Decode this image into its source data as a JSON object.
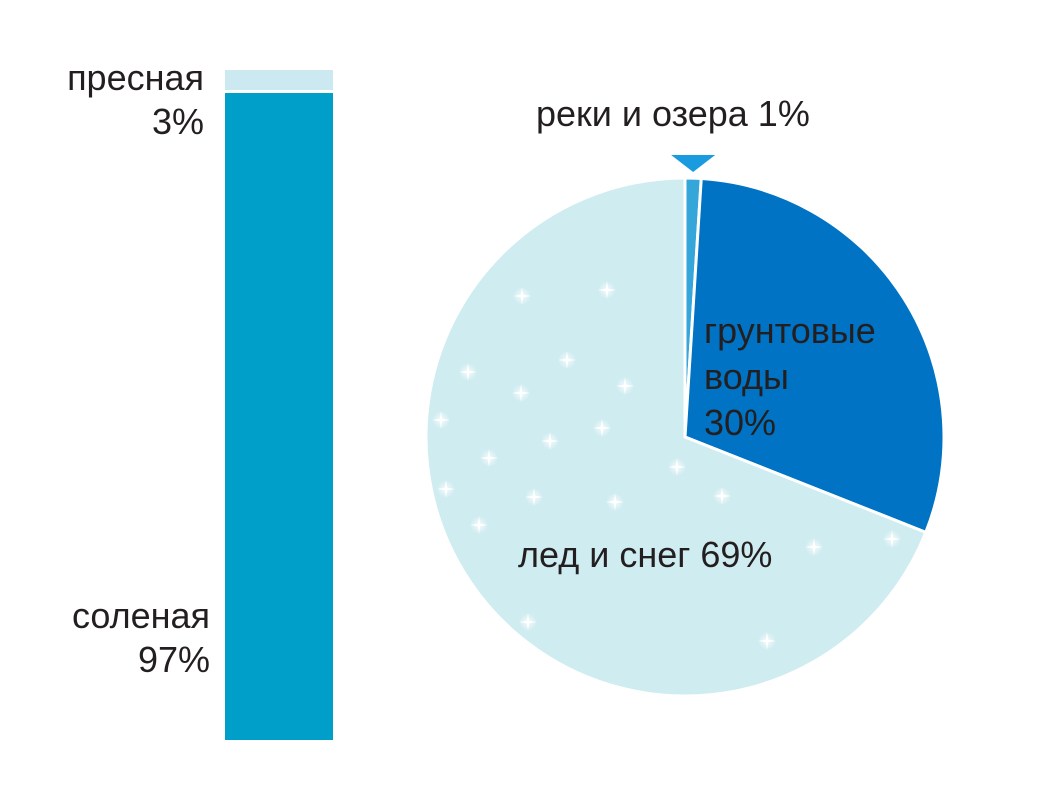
{
  "chart_data": [
    {
      "type": "bar",
      "orientation": "stacked",
      "categories": [
        "пресная",
        "соленая"
      ],
      "values": [
        3,
        97
      ],
      "colors": [
        "#cce9f1",
        "#009fca"
      ],
      "labels": [
        {
          "name": "пресная",
          "value": "3%"
        },
        {
          "name": "соленая",
          "value": "97%"
        }
      ]
    },
    {
      "type": "pie",
      "categories": [
        "реки и озера",
        "грунтовые воды",
        "лед и снег"
      ],
      "values": [
        1,
        30,
        69
      ],
      "colors": [
        "#35a6d9",
        "#0073c4",
        "#cfecf1"
      ],
      "labels": [
        {
          "line1": "реки и озера 1%"
        },
        {
          "line1": "грунтовые",
          "line2": "воды",
          "line3": "30%"
        },
        {
          "line1": "лед и снег 69%"
        }
      ],
      "marker_color": "#1a9be0",
      "sparkle_color": "#ffffff"
    }
  ]
}
